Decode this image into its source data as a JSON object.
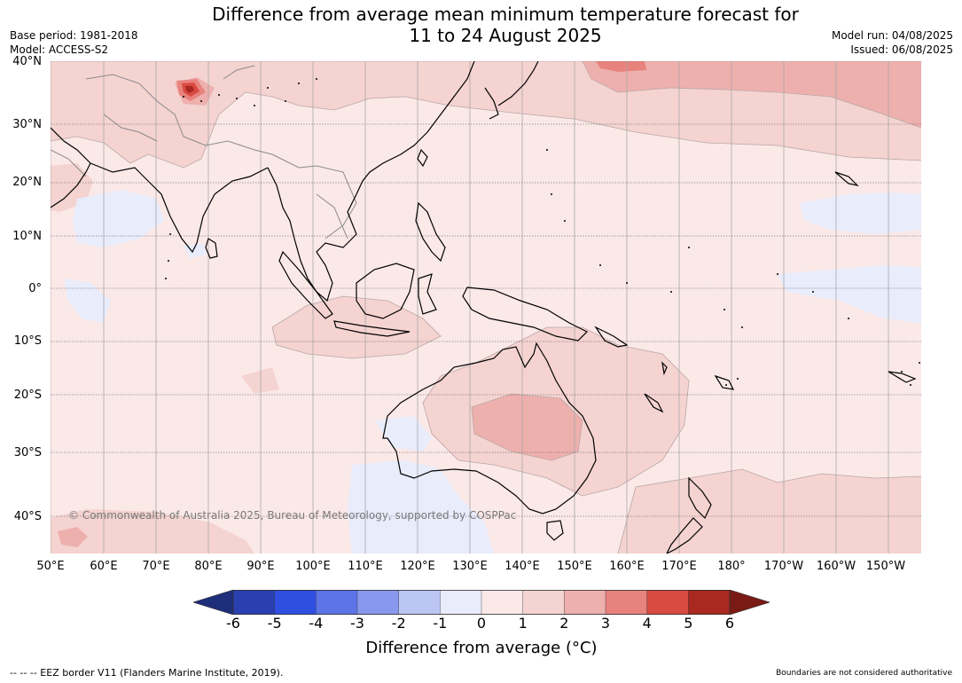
{
  "title_line1": "Difference from average mean minimum temperature forecast for",
  "title_line2": "11 to 24 August 2025",
  "base_period": "Base period: 1981-2018",
  "model": "Model: ACCESS-S2",
  "model_run": "Model run: 04/08/2025",
  "issued": "Issued: 06/08/2025",
  "lat_labels": [
    "40°N",
    "30°N",
    "20°N",
    "10°N",
    "0°",
    "10°S",
    "20°S",
    "30°S",
    "40°S"
  ],
  "lon_labels": [
    "50°E",
    "60°E",
    "70°E",
    "80°E",
    "90°E",
    "100°E",
    "110°E",
    "120°E",
    "130°E",
    "140°E",
    "150°E",
    "160°E",
    "170°E",
    "180°",
    "170°W",
    "160°W",
    "150°W"
  ],
  "colorbar": {
    "ticks": [
      "-6",
      "-5",
      "-4",
      "-3",
      "-2",
      "-1",
      "0",
      "1",
      "2",
      "3",
      "4",
      "5",
      "6"
    ],
    "colors": [
      "#1f2e7a",
      "#2a3fb0",
      "#2f4fe0",
      "#5c74e6",
      "#8898ec",
      "#bcc6f4",
      "#e8ecfb",
      "#fbe9e8",
      "#f4d3d1",
      "#eeb0ad",
      "#e8827d",
      "#d94a40",
      "#a9281f",
      "#7a1a14"
    ],
    "label": "Difference from average (°C)"
  },
  "copyright": "© Commonwealth of Australia 2025, Bureau of Meteorology, supported by COSPPac",
  "footer_left": "--  --  -- EEZ border V11 (Flanders Marine Institute, 2019).",
  "footer_right": "Boundaries are not considered authoritative"
}
